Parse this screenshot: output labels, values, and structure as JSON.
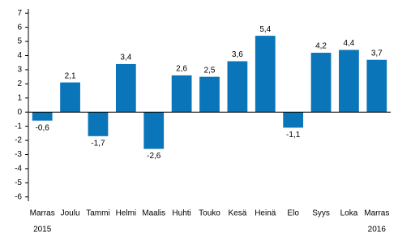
{
  "chart_data": {
    "type": "bar",
    "categories": [
      "Marras",
      "Joulu",
      "Tammi",
      "Helmi",
      "Maalis",
      "Huhti",
      "Touko",
      "Kesä",
      "Heinä",
      "Elo",
      "Syys",
      "Loka",
      "Marras"
    ],
    "x_sublabels": [
      "2015",
      null,
      null,
      null,
      null,
      null,
      null,
      null,
      null,
      null,
      null,
      null,
      "2016"
    ],
    "values": [
      -0.6,
      2.1,
      -1.7,
      3.4,
      -2.6,
      2.6,
      2.5,
      3.6,
      5.4,
      -1.1,
      4.2,
      4.4,
      3.7
    ],
    "value_labels": [
      "-0,6",
      "2,1",
      "-1,7",
      "3,4",
      "-2,6",
      "2,6",
      "2,5",
      "3,6",
      "5,4",
      "-1,1",
      "4,2",
      "4,4",
      "3,7"
    ],
    "color": "#0a75b9",
    "ylim": [
      -6.3,
      7.3
    ],
    "yticks": [
      -6,
      -5,
      -4,
      -3,
      -2,
      -1,
      0,
      1,
      2,
      3,
      4,
      5,
      6,
      7
    ],
    "grid": false
  }
}
